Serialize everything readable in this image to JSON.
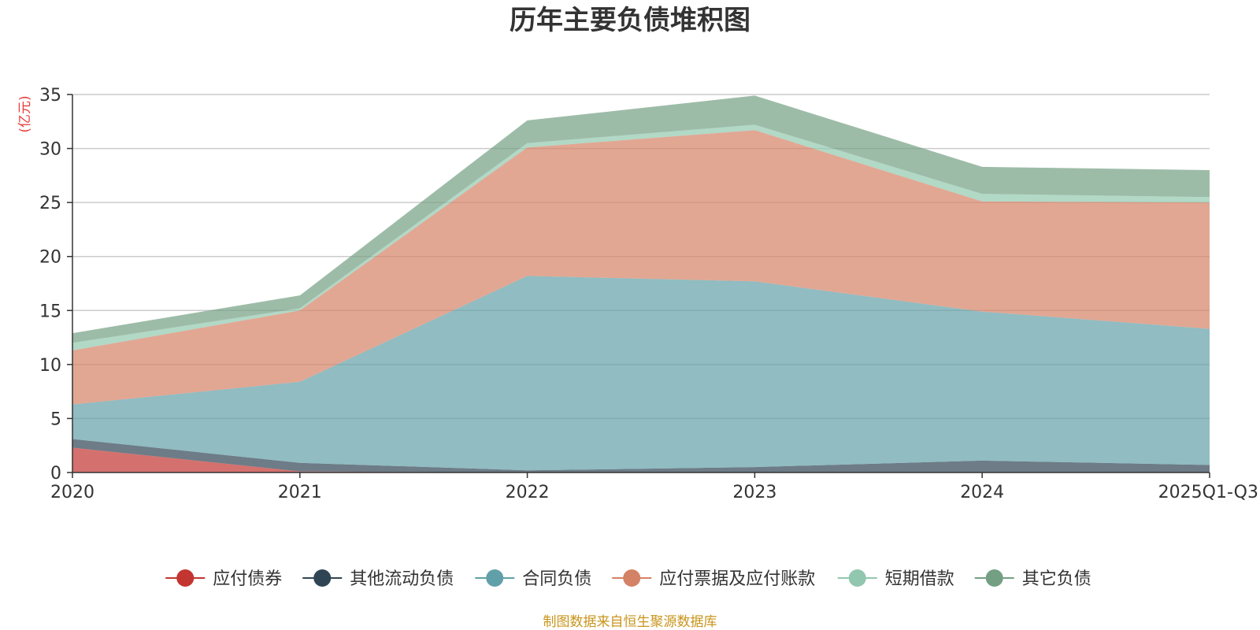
{
  "chart_data": {
    "type": "area",
    "stacked": true,
    "title": "历年主要负债堆积图",
    "ylabel": "(亿元)",
    "xlabel": "",
    "categories": [
      "2020",
      "2021",
      "2022",
      "2023",
      "2024",
      "2025Q1-Q3"
    ],
    "ylim": [
      0,
      35
    ],
    "yticks": [
      0,
      5,
      10,
      15,
      20,
      25,
      30,
      35
    ],
    "grid": true,
    "legend_position": "bottom",
    "series": [
      {
        "name": "应付债券",
        "color": "#c23531",
        "values": [
          2.3,
          0.1,
          0.0,
          0.0,
          0.0,
          0.0
        ]
      },
      {
        "name": "其他流动负债",
        "color": "#2f4554",
        "values": [
          0.8,
          0.8,
          0.2,
          0.5,
          1.1,
          0.7
        ]
      },
      {
        "name": "合同负债",
        "color": "#61a0a8",
        "values": [
          3.2,
          7.5,
          18.0,
          17.2,
          13.8,
          12.6
        ]
      },
      {
        "name": "应付票据及应付账款",
        "color": "#d48265",
        "values": [
          5.0,
          6.6,
          11.9,
          14.0,
          10.2,
          11.7
        ]
      },
      {
        "name": "短期借款",
        "color": "#91c7ae",
        "values": [
          0.7,
          0.2,
          0.4,
          0.5,
          0.7,
          0.5
        ]
      },
      {
        "name": "其它负债",
        "color": "#749f83",
        "values": [
          0.9,
          1.2,
          2.1,
          2.7,
          2.5,
          2.5
        ]
      }
    ],
    "source": "制图数据来自恒生聚源数据库"
  }
}
